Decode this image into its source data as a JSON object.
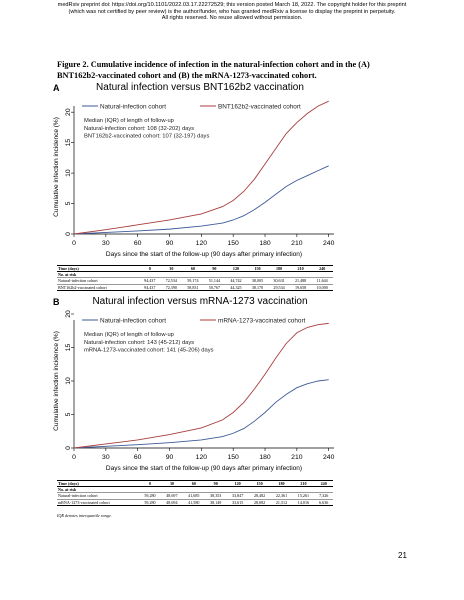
{
  "header": {
    "line1": "medRxiv preprint doi: https://doi.org/10.1101/2022.03.17.22272529; this version posted March 18, 2022. The copyright holder for this preprint",
    "line2": "(which was not certified by peer review) is the author/funder, who has granted medRxiv a license to display the preprint in perpetuity.",
    "line3": "All rights reserved. No reuse allowed without permission."
  },
  "caption": {
    "line1": "Figure 2. Cumulative incidence of infection in the natural-infection cohort and in the (A)",
    "line2": "BNT162b2-vaccinated cohort and (B) the mRNA-1273-vaccinated cohort."
  },
  "colors": {
    "natural": "#3d5a99",
    "vaccine": "#a83d3d",
    "axis": "#000000"
  },
  "chart_data": [
    {
      "type": "line",
      "panel_letter": "A",
      "title": "Natural infection versus BNT162b2 vaccination",
      "xlabel": "Days since the start of the follow-up (90 days after primary infection)",
      "ylabel": "Cumulative infection incidence (%)",
      "xlim": [
        0,
        245
      ],
      "ylim": [
        0,
        22
      ],
      "xticks": [
        0,
        30,
        60,
        90,
        120,
        150,
        180,
        210,
        240
      ],
      "yticks": [
        0,
        5,
        10,
        15,
        20
      ],
      "grid": false,
      "legend": {
        "position": "top",
        "entries": [
          "Natural-infection cohort",
          "BNT162b2-vaccinated cohort"
        ]
      },
      "annotation": [
        "Median (IQR) of length of follow-up",
        "Natural-infection cohort: 108 (32-202) days",
        "BNT162b2-vaccinated cohort: 107 (32-197) days"
      ],
      "series": [
        {
          "name": "Natural-infection cohort",
          "x": [
            0,
            30,
            60,
            90,
            120,
            140,
            150,
            160,
            170,
            180,
            190,
            200,
            210,
            220,
            230,
            240
          ],
          "y": [
            0,
            0.25,
            0.5,
            0.8,
            1.3,
            1.8,
            2.3,
            3.0,
            4.0,
            5.2,
            6.5,
            7.8,
            8.8,
            9.6,
            10.4,
            11.2
          ]
        },
        {
          "name": "BNT162b2-vaccinated cohort",
          "x": [
            0,
            30,
            60,
            90,
            120,
            140,
            150,
            160,
            170,
            180,
            190,
            200,
            210,
            220,
            230,
            240
          ],
          "y": [
            0,
            0.7,
            1.5,
            2.3,
            3.3,
            4.5,
            5.5,
            7.0,
            9.0,
            11.5,
            14.0,
            16.5,
            18.3,
            19.8,
            21.0,
            21.8
          ]
        }
      ]
    },
    {
      "type": "line",
      "panel_letter": "B",
      "title": "Natural infection versus mRNA-1273 vaccination",
      "xlabel": "Days since the start of the follow-up (90 days after primary infection)",
      "ylabel": "Cumulative infection incidence (%)",
      "xlim": [
        0,
        245
      ],
      "ylim": [
        0,
        20
      ],
      "xticks": [
        0,
        30,
        60,
        90,
        120,
        150,
        180,
        210,
        240
      ],
      "yticks": [
        0,
        5,
        10,
        15,
        20
      ],
      "grid": false,
      "legend": {
        "position": "top",
        "entries": [
          "Natural-infection cohort",
          "mRNA-1273-vaccinated cohort"
        ]
      },
      "annotation": [
        "Median (IQR) of length of follow-up",
        "Natural-infection cohort: 143 (45-212) days",
        "mRNA-1273-vaccinated cohort: 141 (45-206) days"
      ],
      "series": [
        {
          "name": "Natural-infection cohort",
          "x": [
            0,
            30,
            60,
            90,
            120,
            140,
            150,
            160,
            170,
            180,
            190,
            200,
            210,
            220,
            230,
            240
          ],
          "y": [
            0,
            0.25,
            0.5,
            0.8,
            1.2,
            1.7,
            2.2,
            2.9,
            4.0,
            5.3,
            6.8,
            8.0,
            9.0,
            9.6,
            10.0,
            10.2
          ]
        },
        {
          "name": "mRNA-1273-vaccinated cohort",
          "x": [
            0,
            30,
            60,
            90,
            120,
            140,
            150,
            160,
            170,
            180,
            190,
            200,
            210,
            220,
            230,
            240
          ],
          "y": [
            0,
            0.6,
            1.2,
            2.0,
            3.0,
            4.2,
            5.3,
            6.8,
            8.8,
            11.0,
            13.4,
            15.6,
            17.2,
            18.0,
            18.4,
            18.6
          ]
        }
      ]
    }
  ],
  "risk_tables": [
    {
      "header": [
        "Time (days)",
        "0",
        "30",
        "60",
        "90",
        "120",
        "150",
        "180",
        "210",
        "240"
      ],
      "subheader": "No. at risk",
      "rows": [
        {
          "label": "Natural-infection cohort",
          "values": [
            "94,437",
            "72,534",
            "59,174",
            "51,144",
            "44,742",
            "38,005",
            "30,631",
            "21,488",
            "11,644"
          ]
        },
        {
          "label": "BNT162b2-vaccinated cohort",
          "values": [
            "94,437",
            "72,390",
            "58,831",
            "50,767",
            "44,325",
            "38,170",
            "29,534",
            "19,658",
            "10,000"
          ]
        }
      ]
    },
    {
      "header": [
        "Time (days)",
        "0",
        "30",
        "60",
        "90",
        "120",
        "150",
        "180",
        "210",
        "240"
      ],
      "subheader": "No. at risk",
      "rows": [
        {
          "label": "Natural-infection cohort",
          "values": [
            "59,280",
            "48,697",
            "41,685",
            "38,353",
            "33,847",
            "28,482",
            "22,361",
            "15,261",
            "7,326"
          ]
        },
        {
          "label": "mRNA-1273-vaccinated cohort",
          "values": [
            "59,280",
            "48,694",
            "41,580",
            "38,149",
            "33,615",
            "28,082",
            "21,512",
            "14,016",
            "6,636"
          ]
        }
      ]
    }
  ],
  "footnote": "IQR denotes interquartile range.",
  "page_number": "21"
}
